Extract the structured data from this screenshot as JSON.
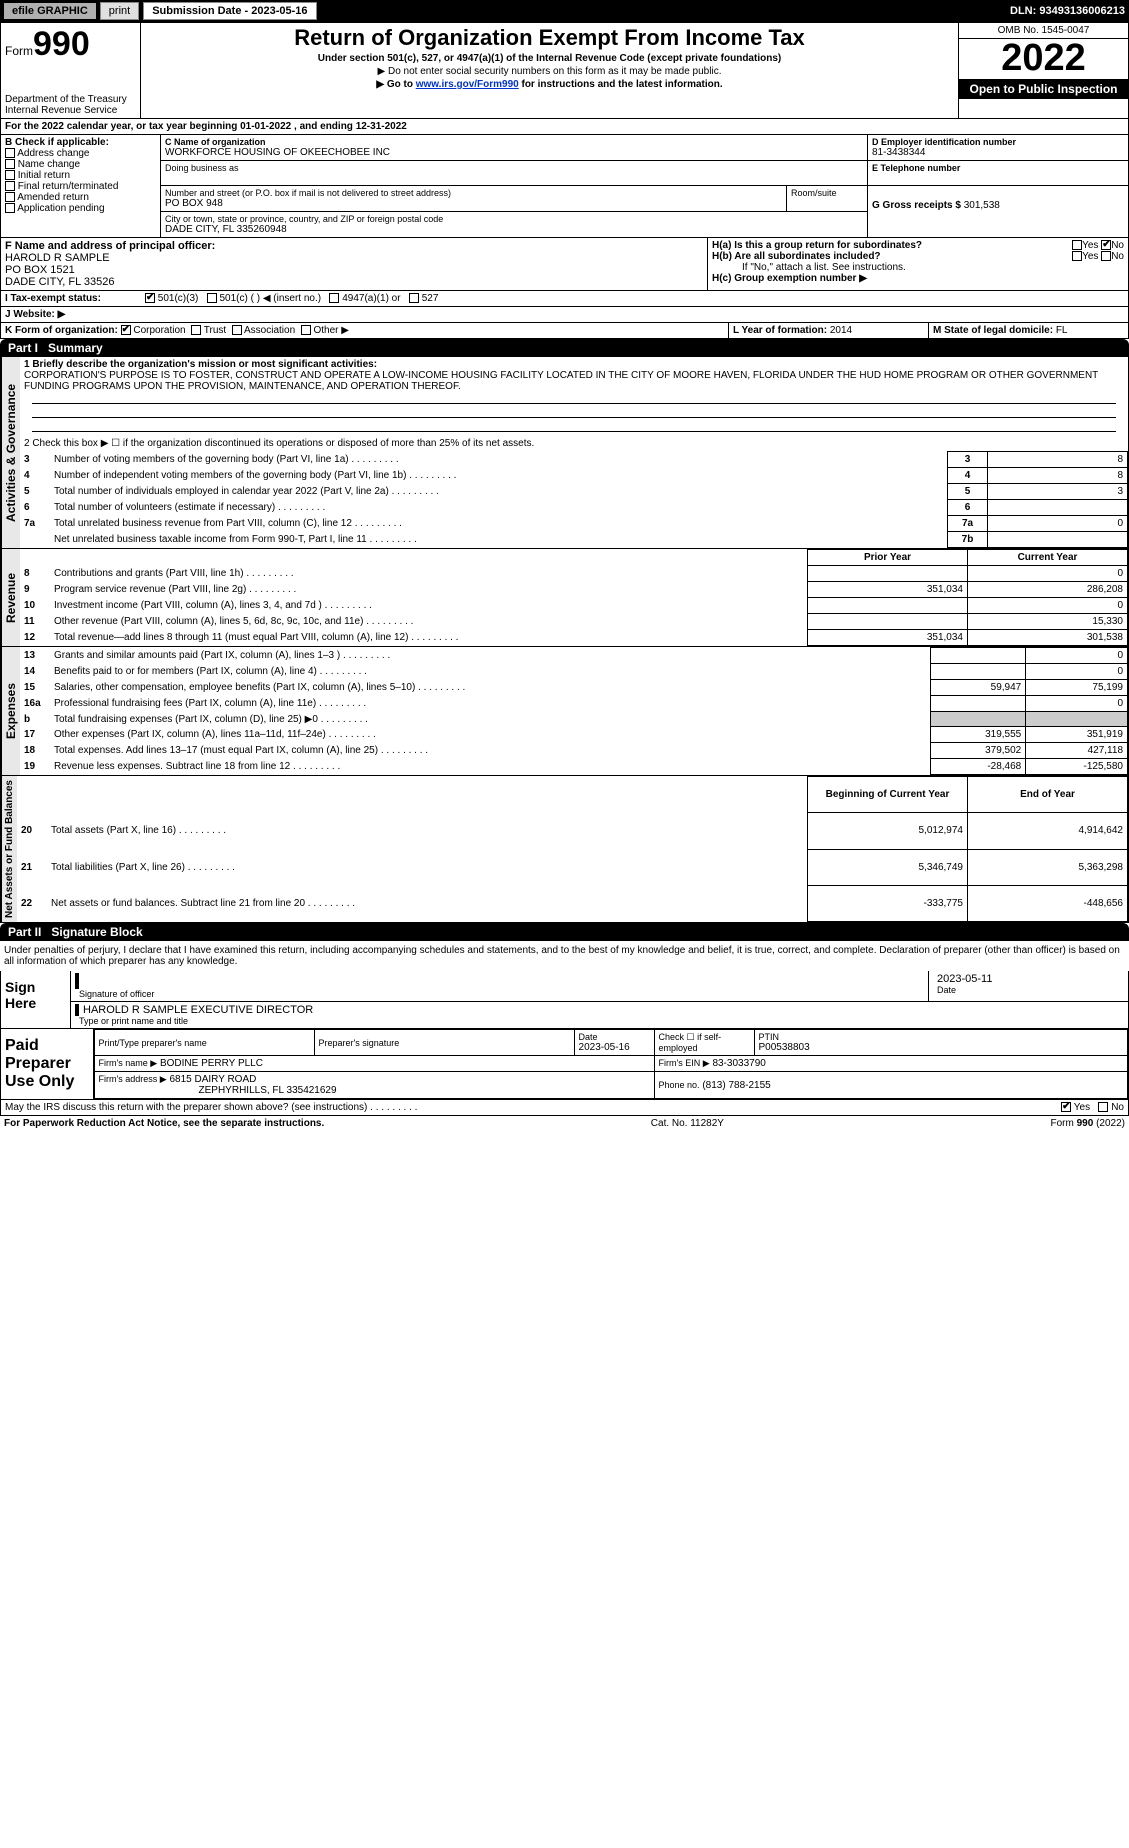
{
  "top_bar": {
    "efile": "efile GRAPHIC",
    "print": "print",
    "submission_date_label": "Submission Date - 2023-05-16",
    "dln": "DLN: 93493136006213"
  },
  "header": {
    "form_label": "Form",
    "form_num": "990",
    "dept": "Department of the Treasury",
    "irs": "Internal Revenue Service",
    "title": "Return of Organization Exempt From Income Tax",
    "sub1": "Under section 501(c), 527, or 4947(a)(1) of the Internal Revenue Code (except private foundations)",
    "sub2": "▶ Do not enter social security numbers on this form as it may be made public.",
    "sub3_pre": "▶ Go to ",
    "sub3_link": "www.irs.gov/Form990",
    "sub3_post": " for instructions and the latest information.",
    "omb": "OMB No. 1545-0047",
    "year": "2022",
    "open_pub": "Open to Public Inspection"
  },
  "line_a": "For the 2022 calendar year, or tax year beginning 01-01-2022    , and ending 12-31-2022",
  "section_b": {
    "label": "B Check if applicable:",
    "items": [
      "Address change",
      "Name change",
      "Initial return",
      "Final return/terminated",
      "Amended return",
      "Application pending"
    ]
  },
  "section_c": {
    "label": "C Name of organization",
    "name": "WORKFORCE HOUSING OF OKEECHOBEE INC",
    "dba_label": "Doing business as",
    "street_label": "Number and street (or P.O. box if mail is not delivered to street address)",
    "room_label": "Room/suite",
    "street": "PO BOX 948",
    "city_label": "City or town, state or province, country, and ZIP or foreign postal code",
    "city": "DADE CITY, FL  335260948"
  },
  "section_d": {
    "label": "D Employer identification number",
    "value": "81-3438344"
  },
  "section_e": {
    "label": "E Telephone number",
    "value": ""
  },
  "section_g": {
    "label": "G Gross receipts $",
    "value": "301,538"
  },
  "principal": {
    "label": "F  Name and address of principal officer:",
    "name": "HAROLD R SAMPLE",
    "street": "PO BOX 1521",
    "city": "DADE CITY, FL  33526"
  },
  "section_h": {
    "h_a": "H(a)  Is this a group return for subordinates?",
    "h_b": "H(b)  Are all subordinates included?",
    "h_b_note": "If \"No,\" attach a list. See instructions.",
    "h_c": "H(c)  Group exemption number ▶",
    "yes": "Yes",
    "no": "No"
  },
  "section_i": {
    "label": "I   Tax-exempt status:",
    "opts": [
      "501(c)(3)",
      "501(c) (  ) ◀ (insert no.)",
      "4947(a)(1) or",
      "527"
    ]
  },
  "section_j": {
    "label": "J   Website: ▶"
  },
  "section_k": {
    "label": "K Form of organization:",
    "opts": [
      "Corporation",
      "Trust",
      "Association",
      "Other ▶"
    ]
  },
  "section_l": {
    "label": "L Year of formation:",
    "value": "2014"
  },
  "section_m": {
    "label": "M State of legal domicile:",
    "value": "FL"
  },
  "part1": {
    "num": "Part I",
    "title": "Summary"
  },
  "part2": {
    "num": "Part II",
    "title": "Signature Block"
  },
  "summary": {
    "vert_labels": [
      "Activities & Governance",
      "Revenue",
      "Expenses",
      "Net Assets or Fund Balances"
    ],
    "line1_label": "1  Briefly describe the organization's mission or most significant activities:",
    "line1_text": "CORPORATION'S PURPOSE IS TO FOSTER, CONSTRUCT AND OPERATE A LOW-INCOME HOUSING FACILITY LOCATED IN THE CITY OF MOORE HAVEN, FLORIDA UNDER THE HUD HOME PROGRAM OR OTHER GOVERNMENT FUNDING PROGRAMS UPON THE PROVISION, MAINTENANCE, AND OPERATION THEREOF.",
    "line2": "2   Check this box ▶ ☐  if the organization discontinued its operations or disposed of more than 25% of its net assets.",
    "rows_ag": [
      {
        "n": "3",
        "t": "Number of voting members of the governing body (Part VI, line 1a)",
        "box": "3",
        "v": "8"
      },
      {
        "n": "4",
        "t": "Number of independent voting members of the governing body (Part VI, line 1b)",
        "box": "4",
        "v": "8"
      },
      {
        "n": "5",
        "t": "Total number of individuals employed in calendar year 2022 (Part V, line 2a)",
        "box": "5",
        "v": "3"
      },
      {
        "n": "6",
        "t": "Total number of volunteers (estimate if necessary)",
        "box": "6",
        "v": ""
      },
      {
        "n": "7a",
        "t": "Total unrelated business revenue from Part VIII, column (C), line 12",
        "box": "7a",
        "v": "0"
      },
      {
        "n": "",
        "t": "Net unrelated business taxable income from Form 990-T, Part I, line 11",
        "box": "7b",
        "v": ""
      }
    ],
    "col_hdrs": [
      "Prior Year",
      "Current Year"
    ],
    "rows_rev": [
      {
        "n": "8",
        "t": "Contributions and grants (Part VIII, line 1h)",
        "p": "",
        "c": "0"
      },
      {
        "n": "9",
        "t": "Program service revenue (Part VIII, line 2g)",
        "p": "351,034",
        "c": "286,208"
      },
      {
        "n": "10",
        "t": "Investment income (Part VIII, column (A), lines 3, 4, and 7d )",
        "p": "",
        "c": "0"
      },
      {
        "n": "11",
        "t": "Other revenue (Part VIII, column (A), lines 5, 6d, 8c, 9c, 10c, and 11e)",
        "p": "",
        "c": "15,330"
      },
      {
        "n": "12",
        "t": "Total revenue—add lines 8 through 11 (must equal Part VIII, column (A), line 12)",
        "p": "351,034",
        "c": "301,538"
      }
    ],
    "rows_exp": [
      {
        "n": "13",
        "t": "Grants and similar amounts paid (Part IX, column (A), lines 1–3 )",
        "p": "",
        "c": "0"
      },
      {
        "n": "14",
        "t": "Benefits paid to or for members (Part IX, column (A), line 4)",
        "p": "",
        "c": "0"
      },
      {
        "n": "15",
        "t": "Salaries, other compensation, employee benefits (Part IX, column (A), lines 5–10)",
        "p": "59,947",
        "c": "75,199"
      },
      {
        "n": "16a",
        "t": "Professional fundraising fees (Part IX, column (A), line 11e)",
        "p": "",
        "c": "0"
      },
      {
        "n": "b",
        "t": "Total fundraising expenses (Part IX, column (D), line 25) ▶0",
        "p": "gray",
        "c": "gray"
      },
      {
        "n": "17",
        "t": "Other expenses (Part IX, column (A), lines 11a–11d, 11f–24e)",
        "p": "319,555",
        "c": "351,919"
      },
      {
        "n": "18",
        "t": "Total expenses. Add lines 13–17 (must equal Part IX, column (A), line 25)",
        "p": "379,502",
        "c": "427,118"
      },
      {
        "n": "19",
        "t": "Revenue less expenses. Subtract line 18 from line 12",
        "p": "-28,468",
        "c": "-125,580"
      }
    ],
    "col_hdrs2": [
      "Beginning of Current Year",
      "End of Year"
    ],
    "rows_net": [
      {
        "n": "20",
        "t": "Total assets (Part X, line 16)",
        "p": "5,012,974",
        "c": "4,914,642"
      },
      {
        "n": "21",
        "t": "Total liabilities (Part X, line 26)",
        "p": "5,346,749",
        "c": "5,363,298"
      },
      {
        "n": "22",
        "t": "Net assets or fund balances. Subtract line 21 from line 20",
        "p": "-333,775",
        "c": "-448,656"
      }
    ]
  },
  "sig_declare": "Under penalties of perjury, I declare that I have examined this return, including accompanying schedules and statements, and to the best of my knowledge and belief, it is true, correct, and complete. Declaration of preparer (other than officer) is based on all information of which preparer has any knowledge.",
  "sign_here": {
    "label": "Sign Here",
    "sig_label": "Signature of officer",
    "date_label": "Date",
    "date": "2023-05-11",
    "name": "HAROLD R SAMPLE  EXECUTIVE DIRECTOR",
    "name_label": "Type or print name and title"
  },
  "paid": {
    "label": "Paid Preparer Use Only",
    "row1": {
      "h1": "Print/Type preparer's name",
      "h2": "Preparer's signature",
      "h3": "Date",
      "date": "2023-05-16",
      "h4": "Check ☐ if self-employed",
      "h5": "PTIN",
      "ptin": "P00538803"
    },
    "row2": {
      "l": "Firm's name    ▶",
      "v": "BODINE PERRY PLLC",
      "r": "Firm's EIN ▶",
      "ein": "83-3033790"
    },
    "row3": {
      "l": "Firm's address ▶",
      "v1": "6815 DAIRY ROAD",
      "v2": "ZEPHYRHILLS, FL  335421629",
      "r": "Phone no.",
      "ph": "(813) 788-2155"
    }
  },
  "discuss": {
    "q": "May the IRS discuss this return with the preparer shown above? (see instructions)",
    "yes": "Yes",
    "no": "No"
  },
  "footer": {
    "l": "For Paperwork Reduction Act Notice, see the separate instructions.",
    "m": "Cat. No. 11282Y",
    "r": "Form 990 (2022)"
  }
}
